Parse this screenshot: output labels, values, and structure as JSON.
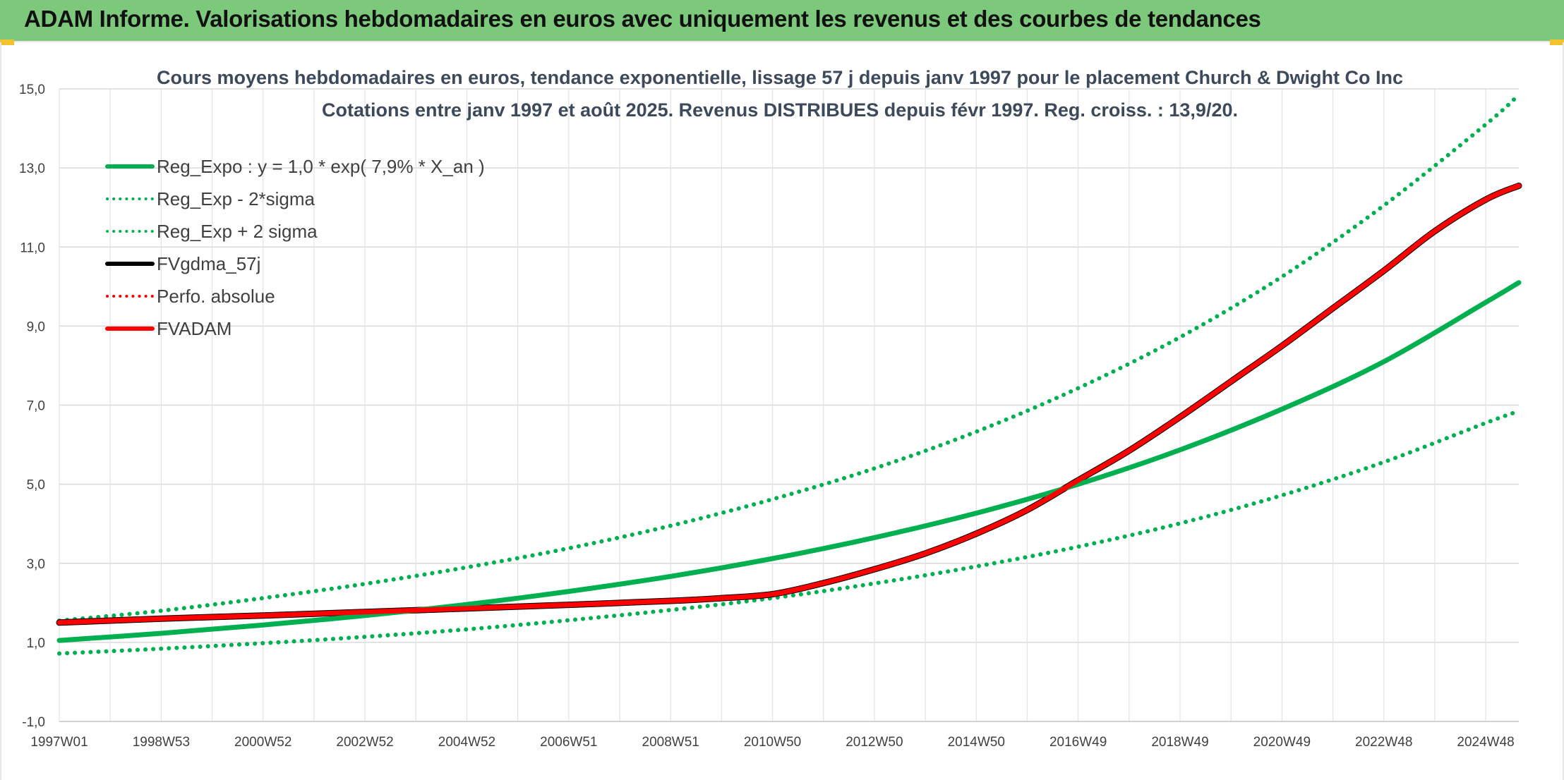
{
  "banner": {
    "title": "ADAM Informe. Valorisations hebdomadaires en euros avec uniquement les revenus et des courbes de tendances"
  },
  "chart_data": {
    "type": "line",
    "title": "Cours moyens hebdomadaires en euros, tendance exponentielle, lissage 57 j depuis janv 1997 pour le placement Church & Dwight Co Inc",
    "subtitle": "Cotations entre janv 1997 et août 2025. Revenus DISTRIBUES depuis févr 1997. Reg. croiss. : 13,9/20.",
    "x_range": [
      1997.0,
      2025.65
    ],
    "ylim": [
      -1.0,
      15.0
    ],
    "y_ticks": [
      "-1,0",
      "1,0",
      "3,0",
      "5,0",
      "7,0",
      "9,0",
      "11,0",
      "13,0",
      "15,0"
    ],
    "y_tick_values": [
      -1,
      1,
      3,
      5,
      7,
      9,
      11,
      13,
      15
    ],
    "x_tick_labels": [
      "1997W01",
      "1998W53",
      "2000W52",
      "2002W52",
      "2004W52",
      "2006W51",
      "2008W51",
      "2010W50",
      "2012W50",
      "2014W50",
      "2016W49",
      "2018W49",
      "2020W49",
      "2022W48",
      "2024W48"
    ],
    "x_tick_values": [
      1997.0,
      1999.0,
      2001.0,
      2003.0,
      2005.0,
      2007.0,
      2009.0,
      2011.0,
      2013.0,
      2015.0,
      2017.0,
      2019.0,
      2021.0,
      2023.0,
      2025.0
    ],
    "grid": true,
    "legend_position": "top-left",
    "legend": [
      {
        "label": "Reg_Expo : y = 1,0 * exp( 7,9% *  X_an )",
        "color": "#00b050",
        "style": "solid"
      },
      {
        "label": "Reg_Exp - 2*sigma",
        "color": "#00b050",
        "style": "dotted"
      },
      {
        "label": "Reg_Exp + 2 sigma",
        "color": "#00b050",
        "style": "dotted"
      },
      {
        "label": "FVgdma_57j",
        "color": "#000000",
        "style": "solid"
      },
      {
        "label": "Perfo. absolue",
        "color": "#ff0000",
        "style": "dotted"
      },
      {
        "label": "FVADAM",
        "color": "#ff0000",
        "style": "solid"
      }
    ],
    "series": [
      {
        "name": "Reg_Expo : y = 1,0 * exp( 7,9% *  X_an )",
        "color": "#00b050",
        "style": "solid",
        "x": [
          1997,
          1999,
          2001,
          2003,
          2005,
          2007,
          2009,
          2011,
          2013,
          2015,
          2017,
          2019,
          2021,
          2023,
          2025,
          2025.65
        ],
        "y": [
          1.05,
          1.23,
          1.44,
          1.68,
          1.96,
          2.29,
          2.67,
          3.12,
          3.65,
          4.27,
          5.0,
          5.87,
          6.9,
          8.1,
          9.6,
          10.1
        ]
      },
      {
        "name": "Reg_Exp - 2*sigma",
        "color": "#00b050",
        "style": "dotted",
        "x": [
          1997,
          1999,
          2001,
          2003,
          2005,
          2007,
          2009,
          2011,
          2013,
          2015,
          2017,
          2019,
          2021,
          2023,
          2025,
          2025.65
        ],
        "y": [
          0.72,
          0.84,
          0.98,
          1.14,
          1.33,
          1.56,
          1.82,
          2.12,
          2.49,
          2.92,
          3.42,
          4.01,
          4.72,
          5.56,
          6.55,
          6.85
        ]
      },
      {
        "name": "Reg_Exp + 2 sigma",
        "color": "#00b050",
        "style": "dotted",
        "x": [
          1997,
          1999,
          2001,
          2003,
          2005,
          2007,
          2009,
          2011,
          2013,
          2015,
          2017,
          2019,
          2021,
          2023,
          2025,
          2025.65
        ],
        "y": [
          1.55,
          1.8,
          2.12,
          2.48,
          2.9,
          3.38,
          3.95,
          4.62,
          5.4,
          6.33,
          7.43,
          8.72,
          10.25,
          12.05,
          14.1,
          14.85
        ]
      },
      {
        "name": "FVADAM",
        "color": "#ff0000",
        "style": "solid",
        "x": [
          1997,
          1999,
          2001,
          2003,
          2005,
          2007,
          2009,
          2010,
          2011,
          2012,
          2013,
          2014,
          2015,
          2016,
          2017,
          2018,
          2019,
          2020,
          2021,
          2022,
          2023,
          2024,
          2025,
          2025.65
        ],
        "y": [
          1.5,
          1.6,
          1.68,
          1.77,
          1.86,
          1.95,
          2.05,
          2.12,
          2.22,
          2.5,
          2.85,
          3.25,
          3.75,
          4.35,
          5.1,
          5.85,
          6.7,
          7.6,
          8.5,
          9.45,
          10.4,
          11.4,
          12.2,
          12.55
        ]
      },
      {
        "name": "FVgdma_57j",
        "color": "#000000",
        "style": "solid",
        "x": [
          1997,
          1999,
          2001,
          2003,
          2005,
          2007,
          2009,
          2010,
          2011,
          2012,
          2013,
          2014,
          2015,
          2016,
          2017,
          2018,
          2019,
          2020,
          2021,
          2022,
          2023,
          2024,
          2025,
          2025.65
        ],
        "y": [
          1.5,
          1.6,
          1.68,
          1.77,
          1.86,
          1.95,
          2.05,
          2.12,
          2.22,
          2.5,
          2.85,
          3.25,
          3.75,
          4.35,
          5.1,
          5.85,
          6.7,
          7.6,
          8.5,
          9.45,
          10.4,
          11.4,
          12.2,
          12.55
        ]
      }
    ]
  }
}
